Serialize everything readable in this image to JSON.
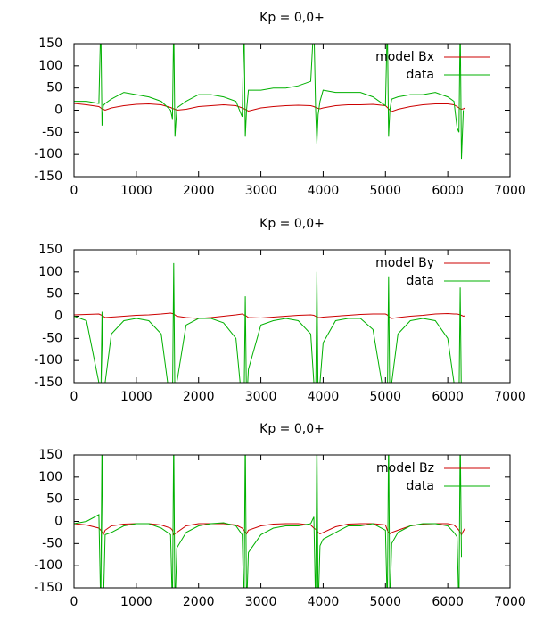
{
  "chart_data": [
    {
      "type": "line",
      "title": "Kp = 0,0+",
      "legend": "upper right",
      "x": [
        0,
        200,
        400,
        430,
        450,
        470,
        500,
        600,
        800,
        1000,
        1200,
        1400,
        1550,
        1580,
        1600,
        1620,
        1650,
        1800,
        2000,
        2200,
        2400,
        2600,
        2700,
        2730,
        2750,
        2770,
        2800,
        3000,
        3200,
        3400,
        3600,
        3800,
        3850,
        3880,
        3900,
        3920,
        3950,
        4000,
        4200,
        4400,
        4600,
        4800,
        5000,
        5030,
        5050,
        5070,
        5100,
        5200,
        5400,
        5600,
        5800,
        6000,
        6100,
        6150,
        6180,
        6200,
        6220,
        6250,
        6280
      ],
      "xlim": [
        0,
        7000
      ],
      "xticks": [
        0,
        1000,
        2000,
        3000,
        4000,
        5000,
        6000,
        7000
      ],
      "ylim": [
        -150,
        150
      ],
      "yticks": [
        -150,
        -100,
        -50,
        0,
        50,
        100,
        150
      ],
      "series": [
        {
          "name": "model Bx",
          "color": "#cc0000",
          "values": [
            15,
            12,
            8,
            5,
            3,
            2,
            0,
            5,
            10,
            13,
            14,
            12,
            6,
            4,
            3,
            2,
            0,
            2,
            8,
            10,
            12,
            10,
            5,
            3,
            2,
            0,
            -2,
            5,
            8,
            10,
            11,
            10,
            8,
            6,
            5,
            4,
            3,
            5,
            10,
            12,
            12,
            13,
            10,
            6,
            3,
            0,
            -3,
            2,
            8,
            12,
            14,
            14,
            12,
            8,
            5,
            3,
            2,
            3,
            5
          ]
        },
        {
          "name": "data",
          "color": "#00b000",
          "values": [
            20,
            20,
            15,
            200,
            -35,
            10,
            15,
            25,
            40,
            35,
            30,
            20,
            0,
            -20,
            200,
            -60,
            5,
            20,
            35,
            35,
            30,
            20,
            -15,
            200,
            -60,
            0,
            45,
            45,
            50,
            50,
            55,
            65,
            200,
            0,
            -75,
            -10,
            20,
            45,
            40,
            40,
            40,
            30,
            10,
            200,
            -60,
            0,
            25,
            30,
            35,
            35,
            40,
            30,
            20,
            -40,
            -50,
            200,
            -110,
            0,
            null
          ]
        }
      ]
    },
    {
      "type": "line",
      "title": "Kp = 0,0+",
      "legend": "upper right",
      "x": [
        0,
        200,
        400,
        430,
        450,
        470,
        500,
        600,
        800,
        1000,
        1200,
        1400,
        1550,
        1580,
        1600,
        1620,
        1650,
        1800,
        2000,
        2200,
        2400,
        2600,
        2700,
        2730,
        2750,
        2770,
        2800,
        3000,
        3200,
        3400,
        3600,
        3800,
        3850,
        3880,
        3900,
        3920,
        3950,
        4000,
        4200,
        4400,
        4600,
        4800,
        5000,
        5030,
        5050,
        5070,
        5100,
        5200,
        5400,
        5600,
        5800,
        6000,
        6100,
        6150,
        6180,
        6200,
        6220,
        6250,
        6280
      ],
      "xlim": [
        0,
        7000
      ],
      "xticks": [
        0,
        1000,
        2000,
        3000,
        4000,
        5000,
        6000,
        7000
      ],
      "ylim": [
        -150,
        150
      ],
      "yticks": [
        -150,
        -100,
        -50,
        0,
        50,
        100,
        150
      ],
      "series": [
        {
          "name": "model By",
          "color": "#cc0000",
          "values": [
            3,
            4,
            5,
            3,
            2,
            0,
            -3,
            -2,
            0,
            2,
            3,
            5,
            7,
            6,
            5,
            3,
            0,
            -3,
            -5,
            -3,
            0,
            3,
            5,
            3,
            2,
            0,
            -3,
            -4,
            -2,
            0,
            2,
            3,
            2,
            0,
            -2,
            -3,
            -3,
            -2,
            0,
            2,
            4,
            5,
            5,
            3,
            0,
            -3,
            -5,
            -3,
            0,
            2,
            5,
            6,
            5,
            5,
            4,
            3,
            2,
            0,
            1
          ]
        },
        {
          "name": "data",
          "color": "#00b000",
          "values": [
            0,
            -10,
            -150,
            -200,
            10,
            -200,
            -150,
            -40,
            -10,
            -5,
            -10,
            -40,
            -200,
            -200,
            120,
            -200,
            -150,
            -20,
            -5,
            -5,
            -15,
            -50,
            -200,
            -200,
            45,
            -200,
            -120,
            -20,
            -10,
            -5,
            -10,
            -40,
            -150,
            -200,
            100,
            -200,
            -150,
            -60,
            -10,
            -5,
            -5,
            -30,
            -200,
            -200,
            90,
            -200,
            -150,
            -40,
            -10,
            -5,
            -10,
            -50,
            -150,
            -200,
            -200,
            65,
            -200,
            null,
            null
          ]
        }
      ]
    },
    {
      "type": "line",
      "title": "Kp = 0,0+",
      "legend": "upper right",
      "x": [
        0,
        200,
        400,
        430,
        450,
        470,
        500,
        600,
        800,
        1000,
        1200,
        1400,
        1550,
        1580,
        1600,
        1620,
        1650,
        1800,
        2000,
        2200,
        2400,
        2600,
        2700,
        2730,
        2750,
        2770,
        2800,
        3000,
        3200,
        3400,
        3600,
        3800,
        3850,
        3880,
        3900,
        3920,
        3950,
        4000,
        4200,
        4400,
        4600,
        4800,
        5000,
        5030,
        5050,
        5070,
        5100,
        5200,
        5400,
        5600,
        5800,
        6000,
        6100,
        6150,
        6180,
        6200,
        6220,
        6250,
        6280
      ],
      "xlim": [
        0,
        7000
      ],
      "xticks": [
        0,
        1000,
        2000,
        3000,
        4000,
        5000,
        6000,
        7000
      ],
      "ylim": [
        -150,
        150
      ],
      "yticks": [
        -150,
        -100,
        -50,
        0,
        50,
        100,
        150
      ],
      "series": [
        {
          "name": "model Bz",
          "color": "#cc0000",
          "values": [
            -5,
            -8,
            -15,
            -20,
            -25,
            -30,
            -20,
            -10,
            -6,
            -5,
            -5,
            -8,
            -15,
            -20,
            -30,
            -28,
            -25,
            -10,
            -5,
            -5,
            -5,
            -8,
            -15,
            -20,
            -25,
            -28,
            -20,
            -10,
            -6,
            -5,
            -5,
            -8,
            -15,
            -18,
            -20,
            -25,
            -28,
            -25,
            -12,
            -6,
            -5,
            -5,
            -8,
            -20,
            -25,
            -28,
            -25,
            -20,
            -10,
            -6,
            -5,
            -5,
            -8,
            -15,
            -20,
            -25,
            -30,
            -22,
            -15
          ]
        },
        {
          "name": "data",
          "color": "#00b000",
          "values": [
            -5,
            0,
            15,
            -200,
            200,
            -200,
            -30,
            -25,
            -10,
            -5,
            -5,
            -15,
            -30,
            -200,
            200,
            -200,
            -60,
            -25,
            -10,
            -5,
            -3,
            -10,
            -30,
            -200,
            200,
            -200,
            -70,
            -30,
            -15,
            -10,
            -10,
            -5,
            10,
            -200,
            200,
            -200,
            -55,
            -40,
            -25,
            -10,
            -10,
            -5,
            -20,
            -200,
            200,
            -200,
            -50,
            -25,
            -10,
            -5,
            -5,
            -10,
            -25,
            -35,
            -200,
            200,
            -80,
            null,
            null
          ]
        }
      ]
    }
  ]
}
